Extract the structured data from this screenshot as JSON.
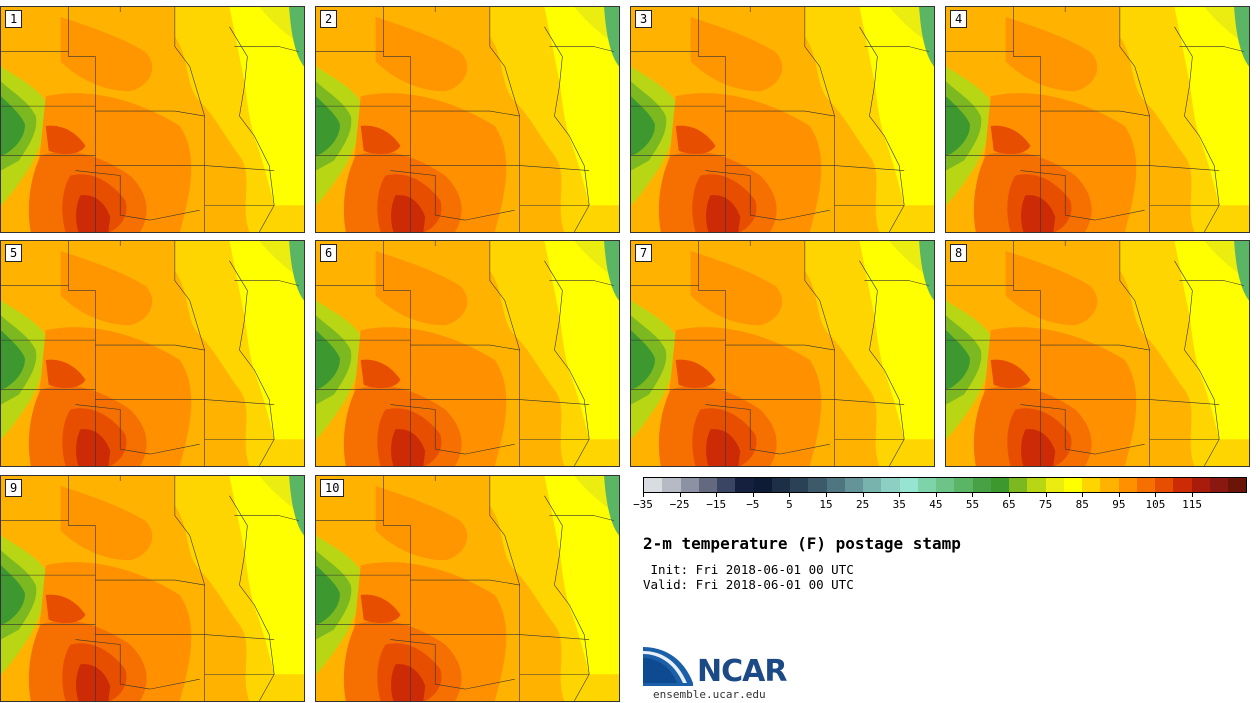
{
  "panels": [
    {
      "label": "1"
    },
    {
      "label": "2"
    },
    {
      "label": "3"
    },
    {
      "label": "4"
    },
    {
      "label": "5"
    },
    {
      "label": "6"
    },
    {
      "label": "7"
    },
    {
      "label": "8"
    },
    {
      "label": "9"
    },
    {
      "label": "10"
    }
  ],
  "colorbar": {
    "colors": [
      "#d9dde2",
      "#b5bac4",
      "#8c91a3",
      "#636a80",
      "#3a4563",
      "#15203f",
      "#0d1b35",
      "#1d2f47",
      "#2b4256",
      "#3d5a6a",
      "#4f7580",
      "#649497",
      "#78b3ad",
      "#8bd0c3",
      "#98e4d2",
      "#7fd3a8",
      "#6ec488",
      "#5ab565",
      "#48a145",
      "#3d9830",
      "#7cb81f",
      "#b8d614",
      "#eaed0f",
      "#ffff00",
      "#ffd500",
      "#ffb300",
      "#ff9100",
      "#f57000",
      "#e84e00",
      "#cc2b06",
      "#a91c0c",
      "#8a1710",
      "#6b1408"
    ],
    "tick_labels": [
      "−35",
      "−25",
      "−15",
      "−5",
      "5",
      "15",
      "25",
      "35",
      "45",
      "55",
      "65",
      "75",
      "85",
      "95",
      "105",
      "115"
    ]
  },
  "title": "2-m temperature (F) postage stamp",
  "init": " Init: Fri 2018-06-01 00 UTC",
  "valid": "Valid: Fri 2018-06-01 00 UTC",
  "logo_text": "NCAR",
  "website": "ensemble.ucar.edu"
}
